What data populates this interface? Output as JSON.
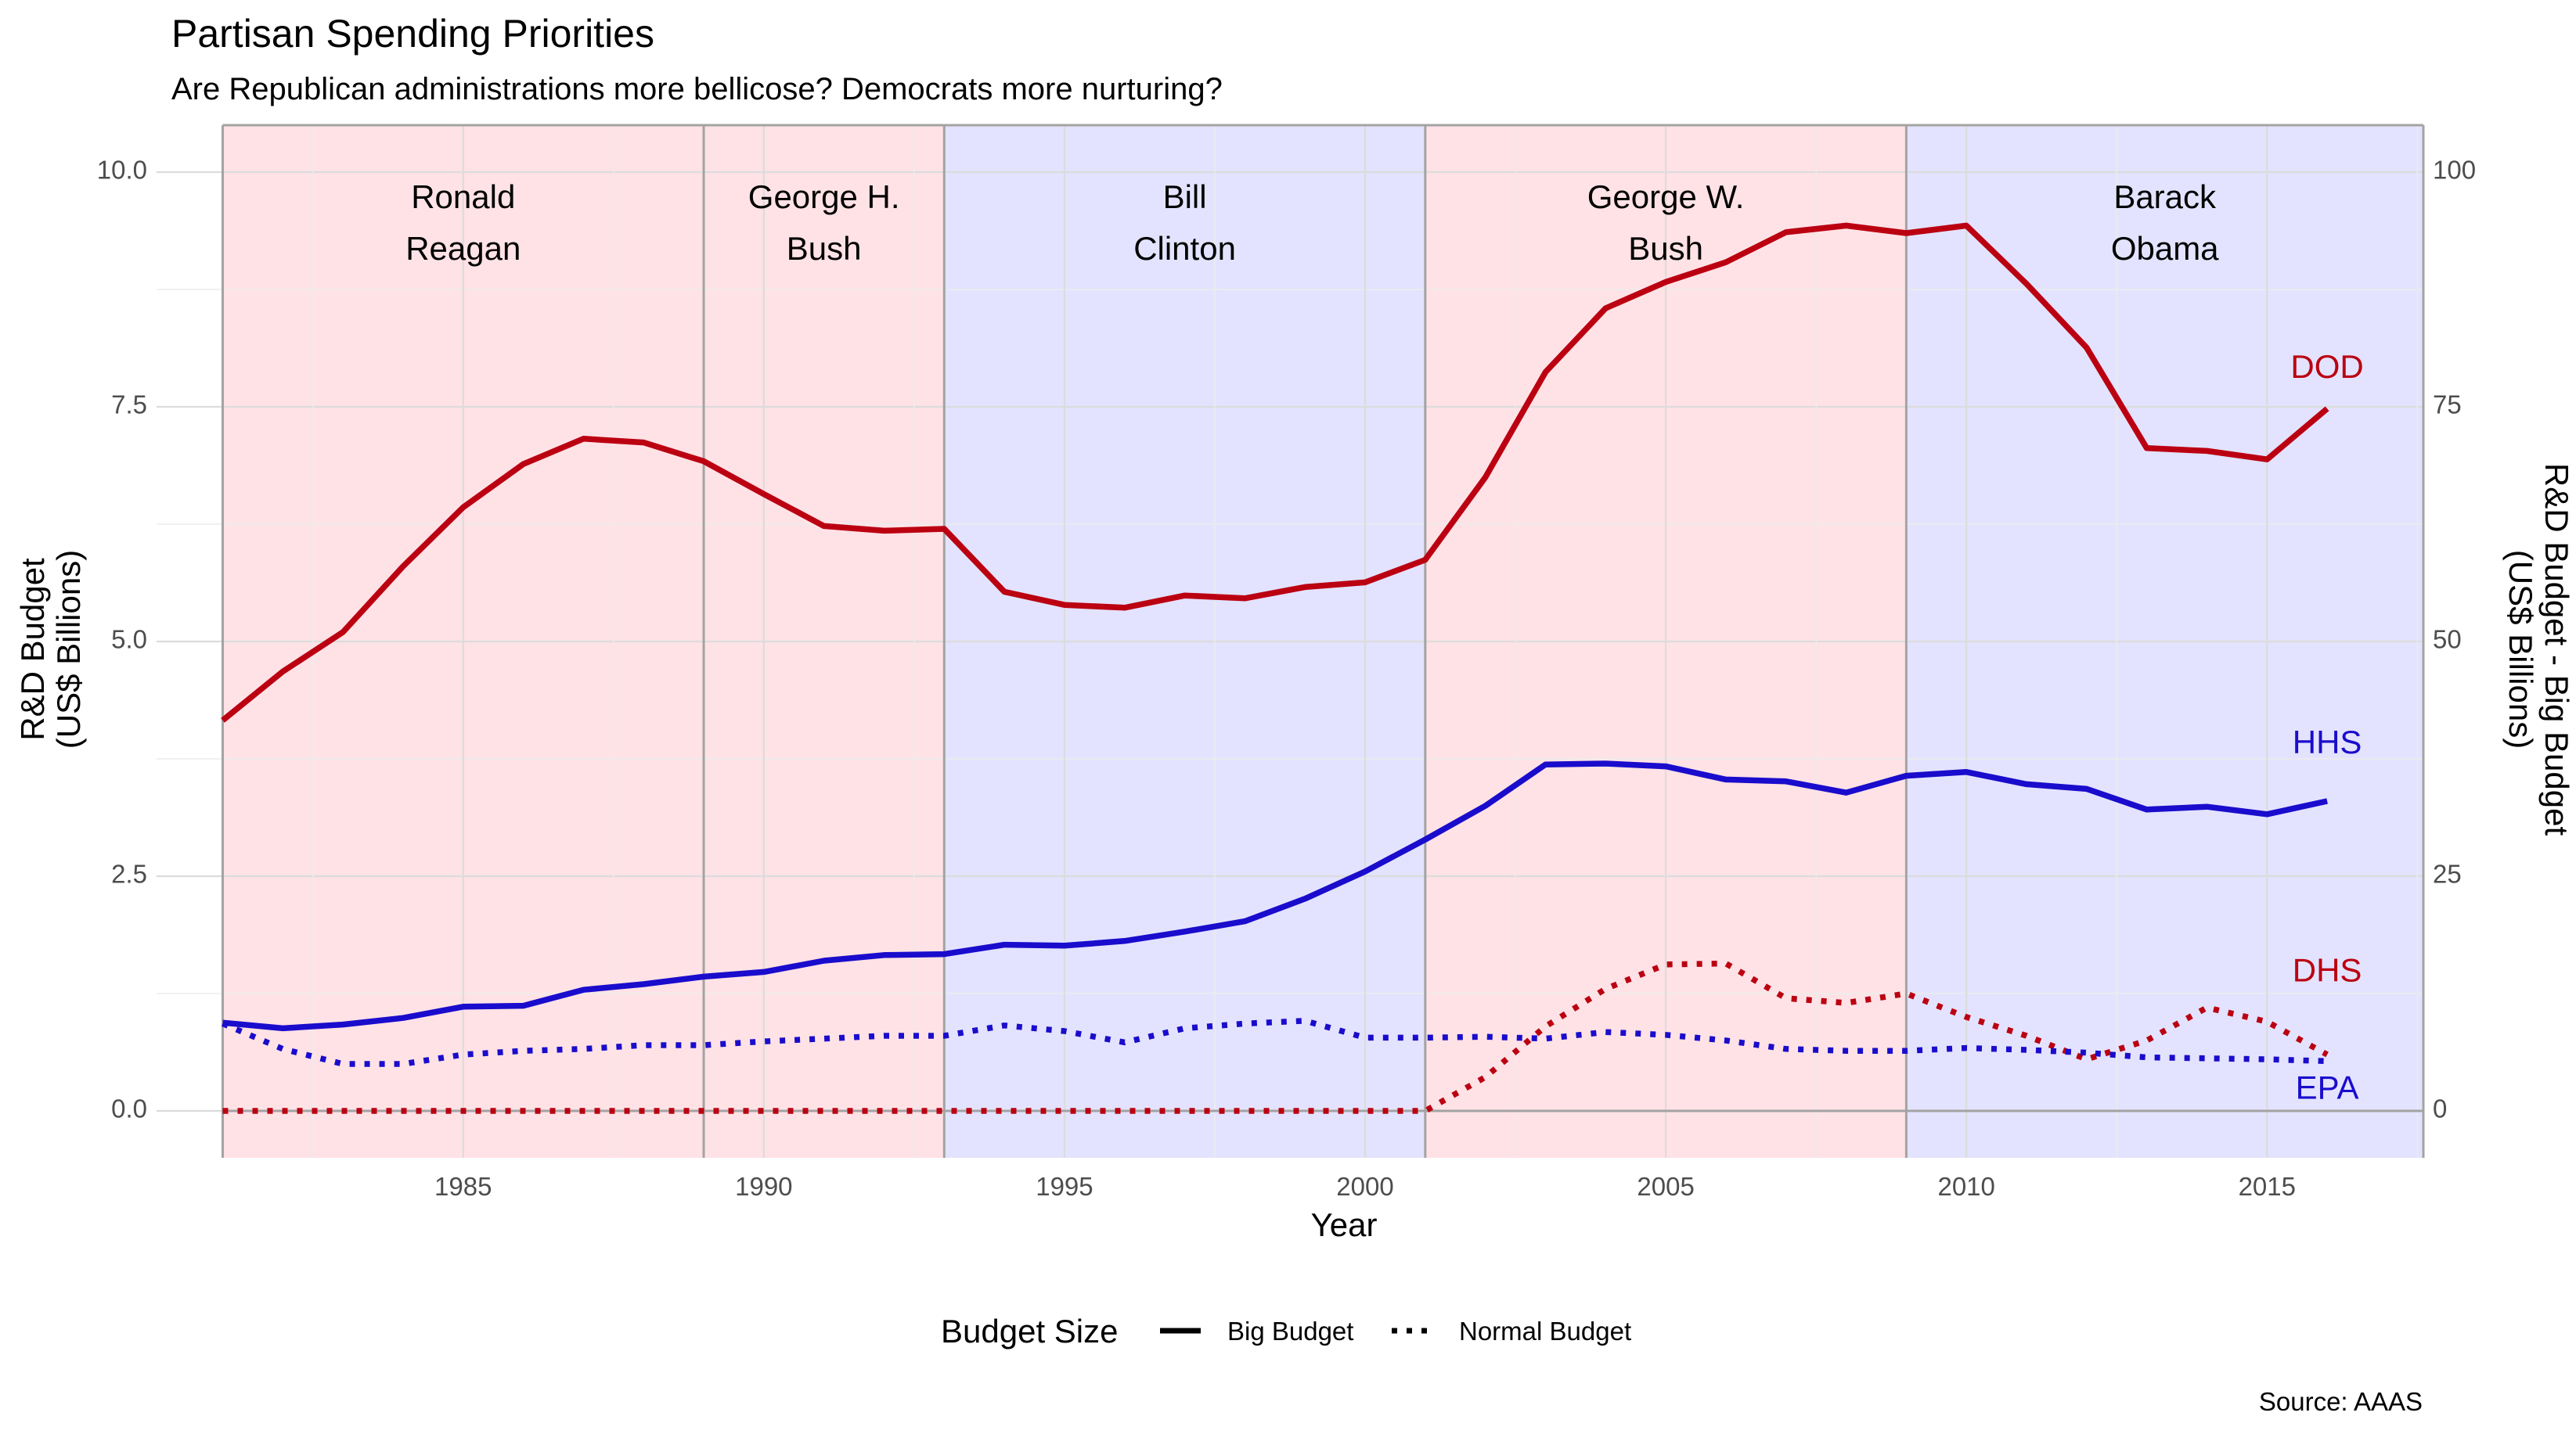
{
  "chart_data": {
    "type": "line",
    "title": "Partisan Spending Priorities",
    "subtitle": "Are Republican administrations more bellicose? Democrats more nurturing?",
    "xlabel": "Year",
    "ylabel": [
      "R&D Budget",
      "(US$ Billions)"
    ],
    "ylabel_right": [
      "R&D Budget - Big Budget",
      "(US$ Billions)"
    ],
    "caption": "Source: AAAS",
    "xlim": [
      1979.9,
      2017.6
    ],
    "ylim": [
      -0.5,
      10.5
    ],
    "ylim_right": [
      -5,
      105
    ],
    "x_ticks": [
      1985,
      1990,
      1995,
      2000,
      2005,
      2010,
      2015
    ],
    "y_ticks": [
      "0.0",
      "2.5",
      "5.0",
      "7.5",
      "10.0"
    ],
    "y_right_ticks": [
      "0",
      "25",
      "50",
      "75",
      "100"
    ],
    "grid": true,
    "colors": {
      "republican_band": "#ffe2e6",
      "democrat_band": "#e3e3ff",
      "red": "#bb0011",
      "blue": "#1a0ccc",
      "divider": "#a3a3a3"
    },
    "administrations": [
      {
        "lines": [
          "Ronald",
          "Reagan"
        ],
        "start": 1981,
        "end": 1989,
        "party": "R"
      },
      {
        "lines": [
          "George H.",
          "Bush"
        ],
        "start": 1989,
        "end": 1993,
        "party": "R"
      },
      {
        "lines": [
          "Bill",
          "Clinton"
        ],
        "start": 1993,
        "end": 2001,
        "party": "D"
      },
      {
        "lines": [
          "George W.",
          "Bush"
        ],
        "start": 2001,
        "end": 2009,
        "party": "R"
      },
      {
        "lines": [
          "Barack",
          "Obama"
        ],
        "start": 2009,
        "end": 2017.6,
        "party": "D"
      }
    ],
    "x": [
      1981,
      1982,
      1983,
      1984,
      1985,
      1986,
      1987,
      1988,
      1989,
      1990,
      1991,
      1992,
      1993,
      1994,
      1995,
      1996,
      1997,
      1998,
      1999,
      2000,
      2001,
      2002,
      2003,
      2004,
      2005,
      2006,
      2007,
      2008,
      2009,
      2010,
      2011,
      2012,
      2013,
      2014,
      2015,
      2016
    ],
    "series": [
      {
        "name": "DOD",
        "budget_size": "Big Budget",
        "axis": "right",
        "color": "#bb0011",
        "values": [
          41.6,
          46.8,
          51.0,
          58.0,
          64.3,
          68.9,
          71.6,
          71.2,
          69.2,
          65.7,
          62.3,
          61.8,
          62.0,
          55.3,
          53.9,
          53.6,
          54.9,
          54.6,
          55.8,
          56.3,
          58.7,
          67.5,
          78.7,
          85.5,
          88.3,
          90.4,
          93.6,
          94.3,
          93.5,
          94.3,
          88.1,
          81.3,
          70.6,
          70.3,
          69.4,
          74.8
        ]
      },
      {
        "name": "HHS",
        "budget_size": "Big Budget",
        "axis": "right",
        "color": "#1a0ccc",
        "values": [
          9.4,
          8.8,
          9.2,
          9.9,
          11.1,
          11.2,
          12.9,
          13.5,
          14.3,
          14.8,
          16.0,
          16.6,
          16.7,
          17.7,
          17.6,
          18.1,
          19.1,
          20.2,
          22.6,
          25.5,
          28.9,
          32.5,
          36.9,
          37.0,
          36.7,
          35.3,
          35.1,
          33.9,
          35.7,
          36.1,
          34.8,
          34.3,
          32.1,
          32.4,
          31.6,
          33.0
        ]
      },
      {
        "name": "DHS",
        "budget_size": "Normal Budget",
        "axis": "left",
        "color": "#bb0011",
        "values": [
          0.0,
          0.0,
          0.0,
          0.0,
          0.0,
          0.0,
          0.0,
          0.0,
          0.0,
          0.0,
          0.0,
          0.0,
          0.0,
          0.0,
          0.0,
          0.0,
          0.0,
          0.0,
          0.0,
          0.0,
          0.0,
          0.36,
          0.9,
          1.3,
          1.56,
          1.57,
          1.2,
          1.15,
          1.25,
          1.0,
          0.8,
          0.55,
          0.75,
          1.1,
          0.95,
          0.6
        ]
      },
      {
        "name": "EPA",
        "budget_size": "Normal Budget",
        "axis": "left",
        "color": "#1a0ccc",
        "values": [
          0.93,
          0.66,
          0.5,
          0.5,
          0.6,
          0.64,
          0.66,
          0.7,
          0.7,
          0.74,
          0.77,
          0.8,
          0.8,
          0.91,
          0.85,
          0.73,
          0.88,
          0.93,
          0.96,
          0.78,
          0.78,
          0.79,
          0.77,
          0.84,
          0.81,
          0.75,
          0.66,
          0.64,
          0.64,
          0.67,
          0.65,
          0.62,
          0.57,
          0.56,
          0.55,
          0.53
        ]
      }
    ],
    "series_labels": [
      {
        "name": "DOD",
        "axis": "right",
        "value": 79,
        "color": "#bb0011"
      },
      {
        "name": "HHS",
        "axis": "right",
        "value": 39,
        "color": "#1a0ccc"
      },
      {
        "name": "DHS",
        "axis": "left",
        "value": 1.47,
        "color": "#bb0011"
      },
      {
        "name": "EPA",
        "axis": "left",
        "value": 0.22,
        "color": "#1a0ccc"
      }
    ],
    "legend": {
      "title": "Budget Size",
      "placement": "bottom",
      "items": [
        {
          "label": "Big Budget",
          "linetype": "solid"
        },
        {
          "label": "Normal Budget",
          "linetype": "dotted"
        }
      ]
    }
  }
}
